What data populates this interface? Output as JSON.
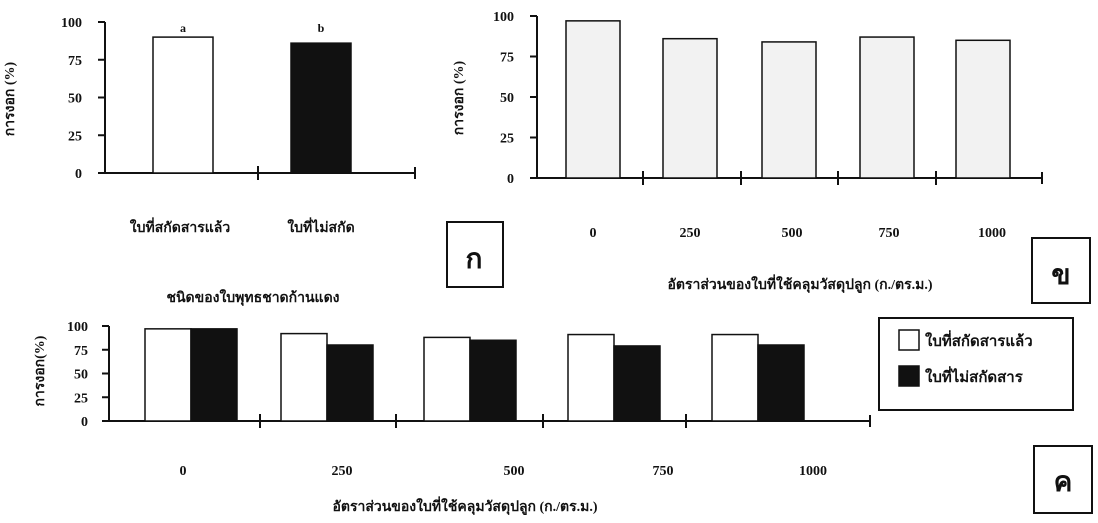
{
  "chart_data": [
    {
      "type": "bar",
      "panel_label": "ก",
      "categories": [
        "ใบที่สกัดสารแล้ว",
        "ใบที่ไม่สกัด"
      ],
      "values": [
        90,
        86
      ],
      "bar_colors": [
        "#ffffff",
        "#111111"
      ],
      "annotations": [
        "a",
        "b"
      ],
      "ylabel": "การงอก (%)",
      "xlabel": "ชนิดของใบพุทธชาดก้านแดง",
      "yticks": [
        "0",
        "25",
        "50",
        "75",
        "100"
      ],
      "ylim": [
        0,
        100
      ]
    },
    {
      "type": "bar",
      "panel_label": "ข",
      "categories": [
        "0",
        "250",
        "500",
        "750",
        "1000"
      ],
      "values": [
        97,
        86,
        84,
        87,
        85
      ],
      "bar_colors": [
        "#f2f2f2"
      ],
      "ylabel": "การงอก (%)",
      "xlabel": "อัตราส่วนของใบที่ใช้คลุมวัสดุปลูก (ก./ตร.ม.)",
      "yticks": [
        "0",
        "25",
        "50",
        "75",
        "100"
      ],
      "ylim": [
        0,
        100
      ]
    },
    {
      "type": "bar",
      "panel_label": "ค",
      "categories": [
        "0",
        "250",
        "500",
        "750",
        "1000"
      ],
      "series": [
        {
          "name": "ใบที่สกัดสารแล้ว",
          "values": [
            97,
            92,
            88,
            91,
            91
          ]
        },
        {
          "name": "ใบที่ไม่สกัดสาร",
          "values": [
            97,
            80,
            85,
            79,
            80
          ]
        }
      ],
      "series_colors": [
        "#ffffff",
        "#111111"
      ],
      "ylabel": "การงอก(%)",
      "xlabel": "อัตราส่วนของใบที่ใช้คลุมวัสดุปลูก (ก./ตร.ม.)",
      "yticks": [
        "0",
        "25",
        "50",
        "75",
        "100"
      ],
      "ylim": [
        0,
        100
      ],
      "legend_position": "right"
    }
  ]
}
